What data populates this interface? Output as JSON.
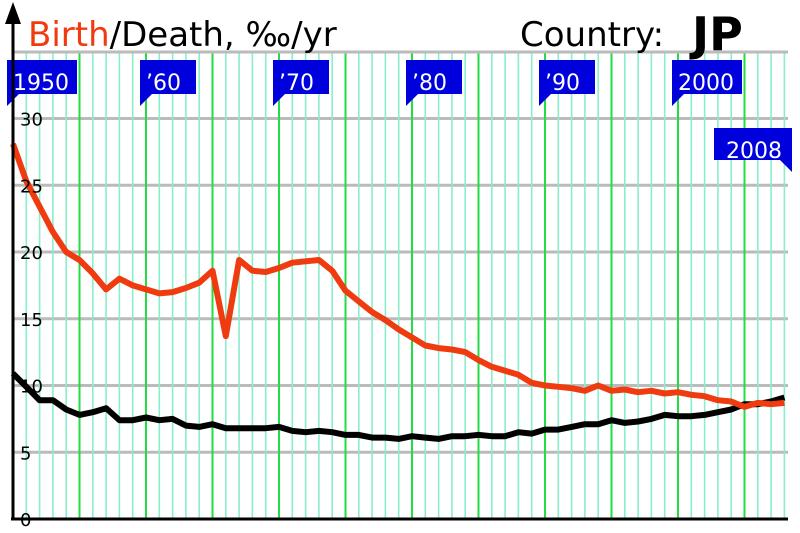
{
  "title": {
    "birth_word": "Birth",
    "rest": "/Death, ‰/yr",
    "country_label": "Country:",
    "country_code": "JP"
  },
  "colors": {
    "birth": "#f03a10",
    "death": "#000000",
    "decade_grid": "#22dd44",
    "year_grid": "#88eecc",
    "hgrid": "#bbbbbb",
    "flag": "#0000dd"
  },
  "chart_data": {
    "type": "line",
    "title": "Birth/Death, ‰/yr",
    "xlabel": "",
    "ylabel": "",
    "xlim": [
      1950,
      2008
    ],
    "ylim": [
      0,
      30
    ],
    "yticks": [
      0,
      5,
      10,
      15,
      20,
      25,
      30
    ],
    "decade_flags": [
      {
        "year": 1950,
        "label": "1950"
      },
      {
        "year": 1960,
        "label": "’60"
      },
      {
        "year": 1970,
        "label": "’70"
      },
      {
        "year": 1980,
        "label": "’80"
      },
      {
        "year": 1990,
        "label": "’90"
      },
      {
        "year": 2000,
        "label": "2000"
      }
    ],
    "end_flag": {
      "year": 2008,
      "label": "2008"
    },
    "grid": true,
    "x": [
      1950,
      1951,
      1952,
      1953,
      1954,
      1955,
      1956,
      1957,
      1958,
      1959,
      1960,
      1961,
      1962,
      1963,
      1964,
      1965,
      1966,
      1967,
      1968,
      1969,
      1970,
      1971,
      1972,
      1973,
      1974,
      1975,
      1976,
      1977,
      1978,
      1979,
      1980,
      1981,
      1982,
      1983,
      1984,
      1985,
      1986,
      1987,
      1988,
      1989,
      1990,
      1991,
      1992,
      1993,
      1994,
      1995,
      1996,
      1997,
      1998,
      1999,
      2000,
      2001,
      2002,
      2003,
      2004,
      2005,
      2006,
      2007,
      2008
    ],
    "series": [
      {
        "name": "Birth",
        "color": "#f03a10",
        "values": [
          28.1,
          25.3,
          23.4,
          21.5,
          20.0,
          19.4,
          18.4,
          17.2,
          18.0,
          17.5,
          17.2,
          16.9,
          17.0,
          17.3,
          17.7,
          18.6,
          13.7,
          19.4,
          18.6,
          18.5,
          18.8,
          19.2,
          19.3,
          19.4,
          18.6,
          17.1,
          16.3,
          15.5,
          14.9,
          14.2,
          13.6,
          13.0,
          12.8,
          12.7,
          12.5,
          11.9,
          11.4,
          11.1,
          10.8,
          10.2,
          10.0,
          9.9,
          9.8,
          9.6,
          10.0,
          9.6,
          9.7,
          9.5,
          9.6,
          9.4,
          9.5,
          9.3,
          9.2,
          8.9,
          8.8,
          8.4,
          8.7,
          8.6,
          8.7
        ]
      },
      {
        "name": "Death",
        "color": "#000000",
        "values": [
          10.9,
          9.9,
          8.9,
          8.9,
          8.2,
          7.8,
          8.0,
          8.3,
          7.4,
          7.4,
          7.6,
          7.4,
          7.5,
          7.0,
          6.9,
          7.1,
          6.8,
          6.8,
          6.8,
          6.8,
          6.9,
          6.6,
          6.5,
          6.6,
          6.5,
          6.3,
          6.3,
          6.1,
          6.1,
          6.0,
          6.2,
          6.1,
          6.0,
          6.2,
          6.2,
          6.3,
          6.2,
          6.2,
          6.5,
          6.4,
          6.7,
          6.7,
          6.9,
          7.1,
          7.1,
          7.4,
          7.2,
          7.3,
          7.5,
          7.8,
          7.7,
          7.7,
          7.8,
          8.0,
          8.2,
          8.6,
          8.6,
          8.8,
          9.1
        ]
      }
    ]
  }
}
